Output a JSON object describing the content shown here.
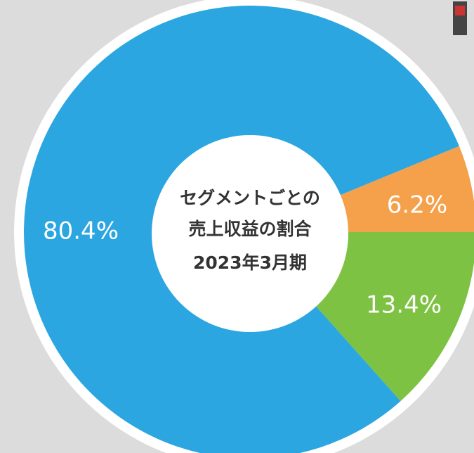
{
  "chart_data": {
    "type": "pie",
    "title_lines": [
      "セグメントごとの",
      "売上収益の割合",
      "2023年3月期"
    ],
    "categories": [
      null,
      null,
      null
    ],
    "values": [
      6.2,
      13.4,
      80.4
    ],
    "value_labels": [
      "6.2%",
      "13.4%",
      "80.4%"
    ],
    "colors": [
      "#f5a04a",
      "#7dc242",
      "#2ba6e0"
    ]
  }
}
